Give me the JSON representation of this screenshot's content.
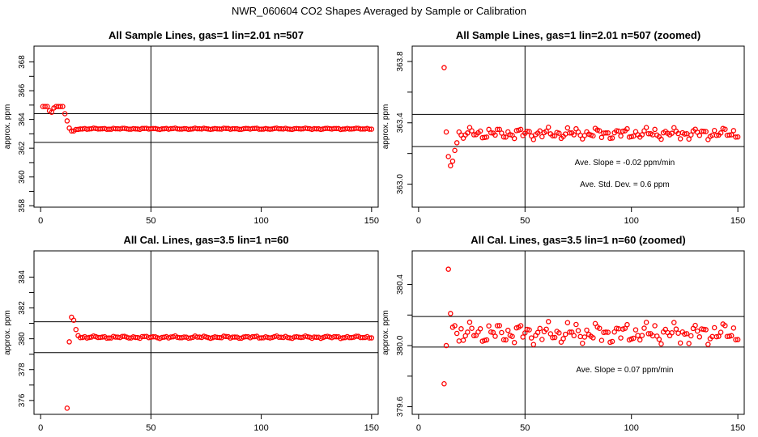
{
  "page_title": "NWR_060604  CO2 Shapes Averaged by Sample or Calibration",
  "chart_data": [
    {
      "type": "scatter",
      "title": "All Sample Lines, gas=1 lin=2.01 n=507",
      "ylabel": "approx. ppm",
      "xlabel": "",
      "xlim": [
        -3,
        153
      ],
      "ylim": [
        357.9,
        369.1
      ],
      "xticks": [
        0,
        50,
        100,
        150
      ],
      "yticks": [
        358,
        360,
        362,
        364,
        366,
        368
      ],
      "hlines": [
        362.4,
        364.4
      ],
      "vlines": [
        50
      ],
      "annotations": [],
      "color": "#ff0000",
      "series": [
        {
          "x": [],
          "y": []
        }
      ],
      "gen": {
        "start": 1,
        "end": 150,
        "early": [
          364.9,
          364.9,
          364.9,
          364.6,
          364.5,
          364.8,
          364.9,
          364.9,
          364.9,
          364.9,
          364.4,
          363.9,
          363.4,
          363.2,
          363.2,
          363.3
        ],
        "base": 363.35,
        "amp": 0.04
      }
    },
    {
      "type": "scatter",
      "title": "All Sample Lines, gas=1 lin=2.01 n=507 (zoomed)",
      "ylabel": "approx. ppm",
      "xlabel": "",
      "xlim": [
        -3,
        153
      ],
      "ylim": [
        362.85,
        363.9
      ],
      "xticks": [
        0,
        50,
        100,
        150
      ],
      "yticks": [
        363.0,
        363.4,
        363.8
      ],
      "hlines": [
        363.245,
        363.455
      ],
      "vlines": [
        50
      ],
      "annotations": [
        "Ave. Slope = -0.02  ppm/min",
        "Ave. Std. Dev. =  0.6  ppm"
      ],
      "color": "#ff0000",
      "series": [
        {
          "x": [],
          "y": []
        }
      ],
      "gen": {
        "start": 12,
        "end": 150,
        "early": [
          363.76,
          363.34,
          363.18,
          363.12,
          363.15,
          363.22,
          363.27,
          363.34,
          363.32,
          363.3
        ],
        "base": 363.33,
        "amp": 0.035
      }
    },
    {
      "type": "scatter",
      "title": "All Cal. Lines, gas=3.5 lin=1 n=60",
      "ylabel": "approx. ppm",
      "xlabel": "",
      "xlim": [
        -3,
        153
      ],
      "ylim": [
        375.1,
        385.7
      ],
      "xticks": [
        0,
        50,
        100,
        150
      ],
      "yticks": [
        376,
        378,
        380,
        382,
        384
      ],
      "hlines": [
        379.1,
        381.1
      ],
      "vlines": [
        50
      ],
      "annotations": [],
      "color": "#ff0000",
      "series": [
        {
          "x": [],
          "y": []
        }
      ],
      "gen": {
        "start": 12,
        "end": 150,
        "early": [
          375.5,
          379.8,
          381.4,
          381.2,
          380.6,
          380.2
        ],
        "base": 380.1,
        "amp": 0.07
      }
    },
    {
      "type": "scatter",
      "title": "All Cal. Lines, gas=3.5 lin=1 n=60 (zoomed)",
      "ylabel": "approx. ppm",
      "xlabel": "",
      "xlim": [
        -3,
        153
      ],
      "ylim": [
        379.55,
        380.62
      ],
      "xticks": [
        0,
        50,
        100,
        150
      ],
      "yticks": [
        379.6,
        380.0,
        380.4
      ],
      "hlines": [
        379.99,
        380.19
      ],
      "vlines": [
        50
      ],
      "annotations": [
        "Ave. Slope =  0.07  ppm/min"
      ],
      "color": "#ff0000",
      "series": [
        {
          "x": [],
          "y": []
        }
      ],
      "gen": {
        "start": 12,
        "end": 150,
        "early": [
          379.75,
          380.0,
          380.5,
          380.21,
          380.12,
          380.13,
          380.08,
          380.03,
          380.11
        ],
        "base": 380.08,
        "amp": 0.065
      }
    }
  ]
}
